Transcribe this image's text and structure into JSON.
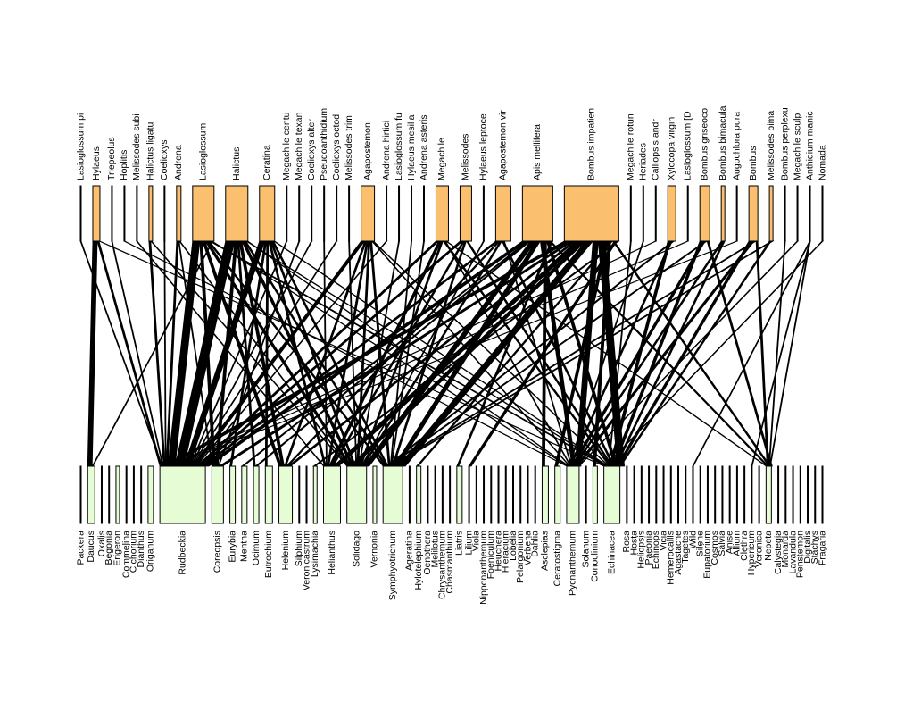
{
  "top_color": "#fbbf70",
  "bottom_color": "#e6fcd4",
  "link_color": "#000000",
  "top_nodes": [
    {
      "label": "Lasioglossum pi",
      "size": 1
    },
    {
      "label": "Hylaeus",
      "size": 8
    },
    {
      "label": "Triepeolus",
      "size": 1
    },
    {
      "label": "Hoplitis",
      "size": 1
    },
    {
      "label": "Melissodes subi",
      "size": 1
    },
    {
      "label": "Halictus ligatu",
      "size": 4
    },
    {
      "label": "Coelioxys",
      "size": 1
    },
    {
      "label": "Andrena",
      "size": 5
    },
    {
      "label": "Lasioglossum",
      "size": 24
    },
    {
      "label": "Halictus",
      "size": 25
    },
    {
      "label": "Ceratina",
      "size": 17
    },
    {
      "label": "Megachile centu",
      "size": 1
    },
    {
      "label": "Megachile texan",
      "size": 1
    },
    {
      "label": "Coelioxys alter",
      "size": 1
    },
    {
      "label": "Pseudoanthidium",
      "size": 1
    },
    {
      "label": "Coelioxys octod",
      "size": 1
    },
    {
      "label": "Melissodes trim",
      "size": 1
    },
    {
      "label": "Agapostemon",
      "size": 15
    },
    {
      "label": "Andrena hirtici",
      "size": 1
    },
    {
      "label": "Lasioglossum fu",
      "size": 1
    },
    {
      "label": "Hylaeus mesilla",
      "size": 1
    },
    {
      "label": "Andrena asteris",
      "size": 1
    },
    {
      "label": "Megachile",
      "size": 14
    },
    {
      "label": "Melissodes",
      "size": 13
    },
    {
      "label": "Hylaeus leptoce",
      "size": 1
    },
    {
      "label": "Agapostemon vir",
      "size": 17
    },
    {
      "label": "Apis mellifera",
      "size": 34
    },
    {
      "label": "Bombus impatien",
      "size": 61
    },
    {
      "label": "Megachile rotun",
      "size": 1
    },
    {
      "label": "Heriades",
      "size": 1
    },
    {
      "label": "Calliopsis andr",
      "size": 1
    },
    {
      "label": "Xylocopa virgin",
      "size": 9
    },
    {
      "label": "Lasioglossum [D",
      "size": 1
    },
    {
      "label": "Bombus griseoco",
      "size": 11
    },
    {
      "label": "Bombus bimacula",
      "size": 4
    },
    {
      "label": "Augochlora pura",
      "size": 1
    },
    {
      "label": "Bombus",
      "size": 10
    },
    {
      "label": "Melissodes bima",
      "size": 4
    },
    {
      "label": "Bombus perplexu",
      "size": 1
    },
    {
      "label": "Megachile sculp",
      "size": 1
    },
    {
      "label": "Anthidium manic",
      "size": 1
    },
    {
      "label": "Nomada",
      "size": 1
    }
  ],
  "bottom_nodes": [
    {
      "label": "Packera",
      "size": 1
    },
    {
      "label": "Daucus",
      "size": 8
    },
    {
      "label": "Oxalis",
      "size": 1
    },
    {
      "label": "Begonia",
      "size": 1
    },
    {
      "label": "Erigeron",
      "size": 4
    },
    {
      "label": "Commelina",
      "size": 1
    },
    {
      "label": "Cichorium",
      "size": 1
    },
    {
      "label": "Dianthus",
      "size": 1
    },
    {
      "label": "Origanum",
      "size": 6
    },
    {
      "label": "Rudbeckia",
      "size": 51
    },
    {
      "label": "Coreopsis",
      "size": 13
    },
    {
      "label": "Eurybia",
      "size": 6
    },
    {
      "label": "Mentha",
      "size": 6
    },
    {
      "label": "Ocimum",
      "size": 6
    },
    {
      "label": "Eutrochium",
      "size": 8
    },
    {
      "label": "Helenium",
      "size": 15
    },
    {
      "label": "Silphium",
      "size": 1
    },
    {
      "label": "Veronicastrum",
      "size": 1
    },
    {
      "label": "Lysimachia",
      "size": 4
    },
    {
      "label": "Helianthus",
      "size": 19
    },
    {
      "label": "Solidago",
      "size": 22
    },
    {
      "label": "Vernonia",
      "size": 4
    },
    {
      "label": "Symphyotrichum",
      "size": 22
    },
    {
      "label": "Ageratina",
      "size": 1
    },
    {
      "label": "Hylotelephium",
      "size": 5
    },
    {
      "label": "Oenothera",
      "size": 1
    },
    {
      "label": "Melilotus",
      "size": 1
    },
    {
      "label": "Chrysanthemum",
      "size": 1
    },
    {
      "label": "Chasmanthium",
      "size": 1
    },
    {
      "label": "Liatris",
      "size": 6
    },
    {
      "label": "Lilium",
      "size": 1
    },
    {
      "label": "Viola",
      "size": 1
    },
    {
      "label": "Nipponanthemum",
      "size": 1
    },
    {
      "label": "Foeniculum",
      "size": 1
    },
    {
      "label": "Heuchera",
      "size": 1
    },
    {
      "label": "Hieracium",
      "size": 1
    },
    {
      "label": "Lobelia",
      "size": 1
    },
    {
      "label": "Pelargonium",
      "size": 1
    },
    {
      "label": "Verbena",
      "size": 1
    },
    {
      "label": "Dahlia",
      "size": 1
    },
    {
      "label": "Asclepias",
      "size": 7
    },
    {
      "label": "Ceratostigma",
      "size": 6
    },
    {
      "label": "Pycnanthemum",
      "size": 14
    },
    {
      "label": "Solanum",
      "size": 1
    },
    {
      "label": "Conoclinium",
      "size": 5
    },
    {
      "label": "Echinacea",
      "size": 18
    },
    {
      "label": "Rosa",
      "size": 1
    },
    {
      "label": "Hosta",
      "size": 1
    },
    {
      "label": "Heliopsis",
      "size": 1
    },
    {
      "label": "Paeonia",
      "size": 1
    },
    {
      "label": "Echinops",
      "size": 1
    },
    {
      "label": "Vicia",
      "size": 1
    },
    {
      "label": "Hemerocallis",
      "size": 1
    },
    {
      "label": "Agastache",
      "size": 1
    },
    {
      "label": "Tagetes",
      "size": 1
    },
    {
      "label": "Wild",
      "size": 1
    },
    {
      "label": "Silene",
      "size": 1
    },
    {
      "label": "Eupatorium",
      "size": 1
    },
    {
      "label": "Cosmos",
      "size": 1
    },
    {
      "label": "Salvia",
      "size": 1
    },
    {
      "label": "Anise",
      "size": 1
    },
    {
      "label": "Allium",
      "size": 1
    },
    {
      "label": "Clethra",
      "size": 1
    },
    {
      "label": "Hypericum",
      "size": 1
    },
    {
      "label": "Veronica",
      "size": 1
    },
    {
      "label": "Nepeta",
      "size": 6
    },
    {
      "label": "Calystegia",
      "size": 1
    },
    {
      "label": "Monarda",
      "size": 1
    },
    {
      "label": "Lavandula",
      "size": 1
    },
    {
      "label": "Penstemon",
      "size": 1
    },
    {
      "label": "Digitalis",
      "size": 1
    },
    {
      "label": "Stachys",
      "size": 1
    },
    {
      "label": "Fragaria",
      "size": 1
    }
  ],
  "links": [
    [
      1,
      1,
      5
    ],
    [
      1,
      9,
      2
    ],
    [
      1,
      45,
      1
    ],
    [
      0,
      9,
      1
    ],
    [
      2,
      9,
      1
    ],
    [
      3,
      42,
      1
    ],
    [
      4,
      19,
      1
    ],
    [
      5,
      9,
      2
    ],
    [
      5,
      20,
      1
    ],
    [
      6,
      9,
      1
    ],
    [
      7,
      9,
      2
    ],
    [
      7,
      10,
      1
    ],
    [
      7,
      20,
      1
    ],
    [
      8,
      9,
      8
    ],
    [
      8,
      10,
      3
    ],
    [
      8,
      15,
      3
    ],
    [
      8,
      20,
      3
    ],
    [
      8,
      22,
      2
    ],
    [
      8,
      45,
      2
    ],
    [
      8,
      42,
      1
    ],
    [
      8,
      1,
      1
    ],
    [
      9,
      9,
      10
    ],
    [
      9,
      10,
      3
    ],
    [
      9,
      13,
      2
    ],
    [
      9,
      15,
      3
    ],
    [
      9,
      20,
      3
    ],
    [
      9,
      22,
      2
    ],
    [
      9,
      45,
      1
    ],
    [
      9,
      42,
      1
    ],
    [
      10,
      9,
      6
    ],
    [
      10,
      11,
      2
    ],
    [
      10,
      14,
      2
    ],
    [
      10,
      19,
      2
    ],
    [
      10,
      20,
      2
    ],
    [
      10,
      22,
      2
    ],
    [
      10,
      45,
      1
    ],
    [
      11,
      9,
      1
    ],
    [
      12,
      10,
      1
    ],
    [
      13,
      9,
      1
    ],
    [
      14,
      19,
      1
    ],
    [
      15,
      9,
      1
    ],
    [
      16,
      20,
      1
    ],
    [
      17,
      9,
      4
    ],
    [
      17,
      15,
      2
    ],
    [
      17,
      19,
      2
    ],
    [
      17,
      20,
      2
    ],
    [
      17,
      22,
      2
    ],
    [
      17,
      42,
      1
    ],
    [
      17,
      45,
      1
    ],
    [
      18,
      9,
      1
    ],
    [
      19,
      20,
      1
    ],
    [
      20,
      22,
      1
    ],
    [
      21,
      22,
      1
    ],
    [
      22,
      9,
      3
    ],
    [
      22,
      19,
      3
    ],
    [
      22,
      20,
      2
    ],
    [
      22,
      45,
      2
    ],
    [
      22,
      42,
      1
    ],
    [
      22,
      65,
      1
    ],
    [
      23,
      9,
      3
    ],
    [
      23,
      19,
      2
    ],
    [
      23,
      22,
      2
    ],
    [
      23,
      45,
      2
    ],
    [
      24,
      20,
      1
    ],
    [
      25,
      9,
      3
    ],
    [
      25,
      15,
      2
    ],
    [
      25,
      20,
      2
    ],
    [
      25,
      45,
      2
    ],
    [
      25,
      42,
      1
    ],
    [
      26,
      9,
      5
    ],
    [
      26,
      12,
      2
    ],
    [
      26,
      13,
      2
    ],
    [
      26,
      20,
      6
    ],
    [
      26,
      22,
      5
    ],
    [
      26,
      42,
      4
    ],
    [
      26,
      40,
      3
    ],
    [
      26,
      45,
      3
    ],
    [
      26,
      65,
      2
    ],
    [
      26,
      29,
      2
    ],
    [
      27,
      9,
      6
    ],
    [
      27,
      10,
      4
    ],
    [
      27,
      15,
      3
    ],
    [
      27,
      19,
      6
    ],
    [
      27,
      20,
      5
    ],
    [
      27,
      22,
      8
    ],
    [
      27,
      42,
      6
    ],
    [
      27,
      45,
      8
    ],
    [
      27,
      41,
      3
    ],
    [
      27,
      44,
      3
    ],
    [
      27,
      24,
      2
    ],
    [
      27,
      65,
      2
    ],
    [
      27,
      30,
      3
    ],
    [
      27,
      18,
      2
    ],
    [
      28,
      45,
      1
    ],
    [
      29,
      42,
      1
    ],
    [
      30,
      9,
      1
    ],
    [
      31,
      45,
      3
    ],
    [
      31,
      42,
      2
    ],
    [
      31,
      22,
      2
    ],
    [
      32,
      9,
      1
    ],
    [
      33,
      45,
      3
    ],
    [
      33,
      42,
      3
    ],
    [
      33,
      22,
      2
    ],
    [
      33,
      65,
      2
    ],
    [
      34,
      42,
      2
    ],
    [
      34,
      45,
      2
    ],
    [
      35,
      9,
      1
    ],
    [
      36,
      45,
      3
    ],
    [
      36,
      42,
      3
    ],
    [
      36,
      22,
      2
    ],
    [
      36,
      65,
      2
    ],
    [
      37,
      45,
      2
    ],
    [
      37,
      22,
      2
    ],
    [
      38,
      65,
      1
    ],
    [
      39,
      42,
      1
    ],
    [
      40,
      65,
      1
    ],
    [
      40,
      63,
      1
    ],
    [
      40,
      55,
      1
    ],
    [
      41,
      45,
      1
    ]
  ]
}
